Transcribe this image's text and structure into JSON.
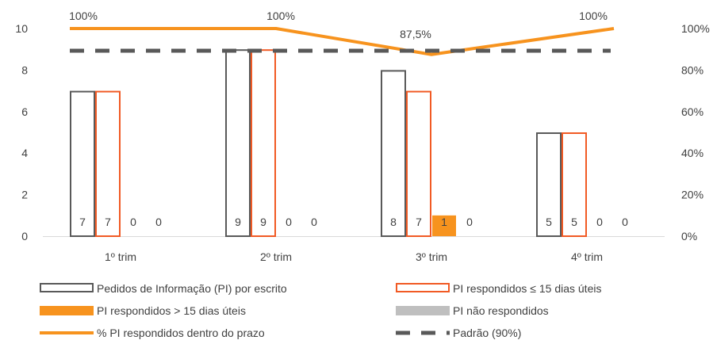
{
  "chart_data": {
    "type": "bar",
    "categories": [
      "1º trim",
      "2º trim",
      "3º trim",
      "4º trim"
    ],
    "series": [
      {
        "name": "Pedidos de Informação (PI) por escrito",
        "kind": "bar",
        "style": "outline",
        "color": "#595959",
        "values": [
          7,
          9,
          8,
          5
        ]
      },
      {
        "name": "PI respondidos ≤ 15 dias úteis",
        "kind": "bar",
        "style": "outline",
        "color": "#f15a24",
        "values": [
          7,
          9,
          7,
          5
        ]
      },
      {
        "name": "PI respondidos > 15 dias úteis",
        "kind": "bar",
        "style": "filled",
        "color": "#f7931e",
        "values": [
          0,
          0,
          1,
          0
        ]
      },
      {
        "name": "PI não respondidos",
        "kind": "bar",
        "style": "filled",
        "color": "#bfbfbf",
        "values": [
          0,
          0,
          0,
          0
        ]
      },
      {
        "name": "% PI respondidos dentro do prazo",
        "kind": "line",
        "axis": "right",
        "color": "#f7931e",
        "values": [
          100,
          100,
          87.5,
          100
        ],
        "labels": [
          "100%",
          "100%",
          "87,5%",
          "100%"
        ]
      },
      {
        "name": "Padrão (90%)",
        "kind": "line",
        "axis": "right",
        "dashed": true,
        "color": "#595959",
        "values": [
          90,
          90,
          90,
          90
        ]
      }
    ],
    "y_left": {
      "min": 0,
      "max": 10,
      "ticks": [
        "0",
        "2",
        "4",
        "6",
        "8",
        "10"
      ]
    },
    "y_right": {
      "min": 0,
      "max": 100,
      "ticks": [
        "0%",
        "20%",
        "40%",
        "60%",
        "80%",
        "100%"
      ]
    },
    "grid": false,
    "legend_position": "bottom"
  }
}
